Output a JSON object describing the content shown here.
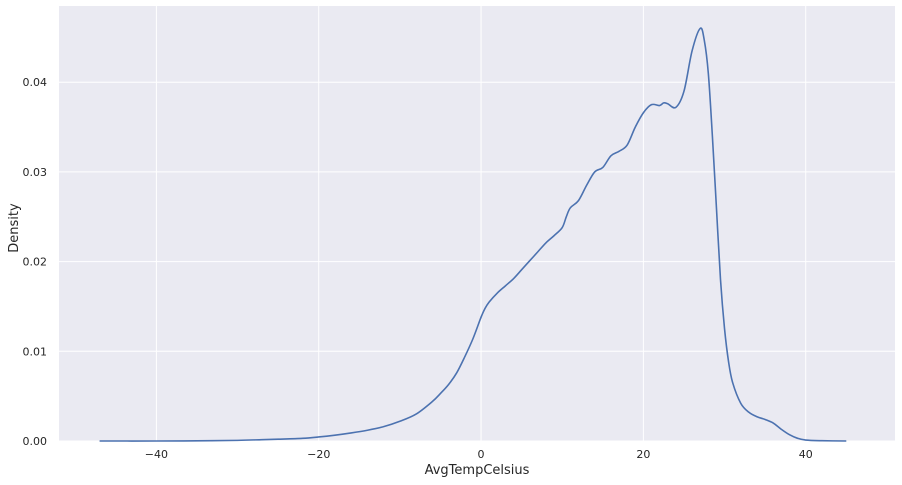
{
  "chart_data": {
    "type": "line",
    "xlabel": "AvgTempCelsius",
    "ylabel": "Density",
    "xlim": [
      -52,
      51
    ],
    "ylim": [
      0,
      0.0485
    ],
    "xticks": [
      -40,
      -20,
      0,
      20,
      40
    ],
    "xtick_labels": [
      "−40",
      "−20",
      "0",
      "20",
      "40"
    ],
    "yticks": [
      0,
      0.01,
      0.02,
      0.03,
      0.04
    ],
    "ytick_labels": [
      "0.00",
      "0.01",
      "0.02",
      "0.03",
      "0.04"
    ],
    "grid": true,
    "background": "#eaeaf2",
    "line_color": "#4c72b0",
    "series": [
      {
        "x": [
          -47,
          -40,
          -35,
          -30,
          -27,
          -25,
          -22,
          -20,
          -18,
          -16,
          -14,
          -12,
          -10,
          -8,
          -6,
          -5,
          -4,
          -3,
          -2,
          -1,
          0,
          0.5,
          1,
          2,
          3,
          4,
          5,
          6,
          7,
          8,
          9,
          10,
          10.5,
          11,
          12,
          13,
          14,
          15,
          16,
          17,
          18,
          19,
          20,
          21,
          22,
          22.5,
          23,
          24,
          25,
          26,
          27,
          27.5,
          28,
          28.5,
          29,
          29.5,
          30,
          30.5,
          31,
          32,
          33,
          34,
          35,
          36,
          37,
          38,
          39,
          40,
          42,
          45
        ],
        "y": [
          0.0,
          0.0,
          2e-05,
          7e-05,
          0.00015,
          0.0002,
          0.0003,
          0.00045,
          0.00065,
          0.0009,
          0.0012,
          0.0016,
          0.0022,
          0.003,
          0.0044,
          0.0053,
          0.0063,
          0.0076,
          0.0094,
          0.0114,
          0.0138,
          0.0148,
          0.0155,
          0.0165,
          0.0173,
          0.0181,
          0.0191,
          0.0201,
          0.0211,
          0.0221,
          0.0229,
          0.0238,
          0.025,
          0.026,
          0.0268,
          0.0285,
          0.03,
          0.0305,
          0.0318,
          0.0323,
          0.033,
          0.035,
          0.0366,
          0.0375,
          0.0374,
          0.0377,
          0.0376,
          0.0372,
          0.039,
          0.0435,
          0.046,
          0.0447,
          0.041,
          0.034,
          0.026,
          0.018,
          0.0125,
          0.0088,
          0.0065,
          0.0042,
          0.0032,
          0.0027,
          0.0024,
          0.002,
          0.0013,
          0.0007,
          0.0003,
          0.0001,
          3e-05,
          0.0
        ]
      }
    ]
  }
}
